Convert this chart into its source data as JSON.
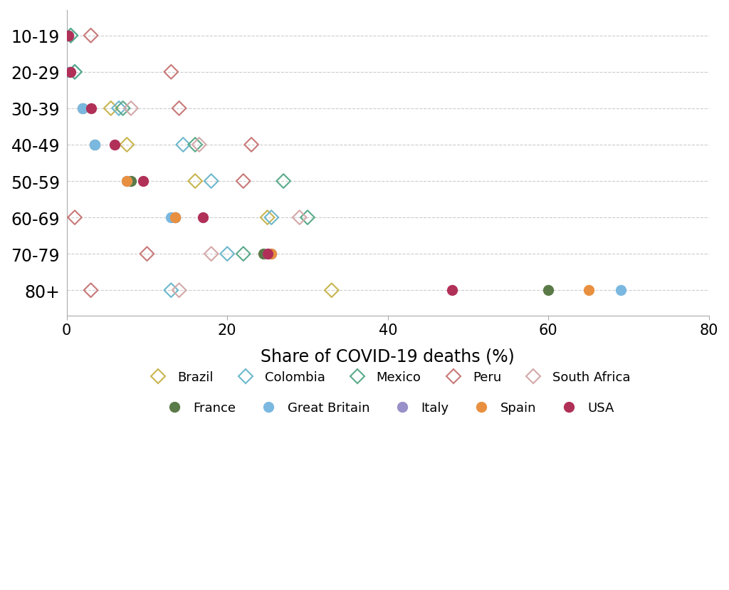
{
  "age_groups": [
    "10-19",
    "20-29",
    "30-39",
    "40-49",
    "50-59",
    "60-69",
    "70-79",
    "80+"
  ],
  "data": {
    "Brazil": [
      null,
      null,
      5.5,
      7.5,
      16.0,
      25.0,
      null,
      33.0
    ],
    "Colombia": [
      0.5,
      1.0,
      6.5,
      14.5,
      18.0,
      25.5,
      20.0,
      13.0
    ],
    "Mexico": [
      0.5,
      1.0,
      7.0,
      16.0,
      27.0,
      30.0,
      22.0,
      null
    ],
    "Peru": [
      3.0,
      13.0,
      14.0,
      23.0,
      22.0,
      1.0,
      10.0,
      3.0
    ],
    "South Africa": [
      null,
      null,
      8.0,
      16.5,
      null,
      29.0,
      18.0,
      14.0
    ],
    "France": [
      0.2,
      0.3,
      2.0,
      3.5,
      8.0,
      13.5,
      24.5,
      60.0
    ],
    "Great Britain": [
      0.2,
      0.3,
      2.0,
      3.5,
      7.5,
      13.0,
      25.0,
      69.0
    ],
    "Italy": [
      null,
      null,
      null,
      null,
      null,
      13.5,
      25.5,
      null
    ],
    "Spain": [
      null,
      null,
      null,
      null,
      7.5,
      13.5,
      25.5,
      65.0
    ],
    "USA": [
      0.2,
      0.5,
      3.0,
      6.0,
      9.5,
      17.0,
      25.0,
      48.0
    ]
  },
  "diamond_countries": [
    "Brazil",
    "Colombia",
    "Mexico",
    "Peru",
    "South Africa"
  ],
  "circle_countries": [
    "France",
    "Great Britain",
    "Italy",
    "Spain",
    "USA"
  ],
  "colors": {
    "Brazil": "#c8b550",
    "Colombia": "#6db8cc",
    "Mexico": "#5aaa8a",
    "Peru": "#c87878",
    "South Africa": "#d4a8a8",
    "France": "#5a7a48",
    "Great Britain": "#7ab8e0",
    "Italy": "#9890c8",
    "Spain": "#e89040",
    "USA": "#b03058"
  },
  "legend_labels": {
    "Brazil": "Brazil",
    "Colombia": "Colombia",
    "Mexico": "Mexico",
    "Peru": "Peru",
    "South Africa": "South Africa",
    "France": "France",
    "Great Britain": "Great Britain",
    "Italy": "Italy",
    "Spain": "Spain",
    "USA": "USA"
  },
  "xlim": [
    0,
    80
  ],
  "xticks": [
    0,
    20,
    40,
    60,
    80
  ],
  "xlabel": "Share of COVID-19 deaths (%)",
  "bg_color": "#ffffff",
  "marker_size": 100,
  "marker_lw": 1.5
}
